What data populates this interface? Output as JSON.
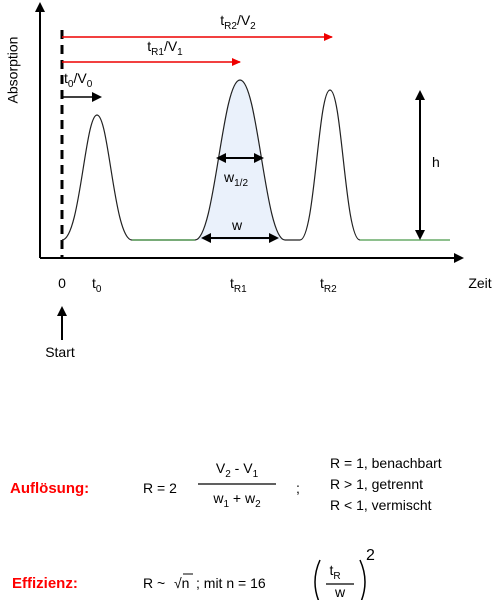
{
  "axes": {
    "y_label": "Absorption",
    "x_label": "Zeit",
    "origin": "0",
    "start": "Start"
  },
  "arrows": [
    {
      "parts": [
        "t",
        "R2",
        "/V",
        "2"
      ]
    },
    {
      "parts": [
        "t",
        "R1",
        "/V",
        "1"
      ]
    },
    {
      "parts": [
        "t",
        "0",
        "/V",
        "0"
      ]
    }
  ],
  "ticks": [
    {
      "parts": [
        "t",
        "0"
      ]
    },
    {
      "parts": [
        "t",
        "R1"
      ]
    },
    {
      "parts": [
        "t",
        "R2"
      ]
    }
  ],
  "measures": {
    "w_half": [
      "w",
      "1/2"
    ],
    "w": "w",
    "h": "h"
  },
  "resolution": {
    "label": "Auflösung:",
    "lhs": "R = 2",
    "numerator": [
      "V",
      "2",
      " - V",
      "1"
    ],
    "denominator": [
      "w",
      "1",
      " + w",
      "2"
    ],
    "separator": ";",
    "conditions": [
      "R = 1, benachbart",
      "R > 1, getrennt",
      "R < 1, vermischt"
    ]
  },
  "efficiency": {
    "label": "Effizienz:",
    "lhs": "R ~",
    "root": "√n",
    "rest": "; mit n = 16",
    "numerator": [
      "t",
      "R"
    ],
    "denominator": "w",
    "exponent": "2"
  }
}
